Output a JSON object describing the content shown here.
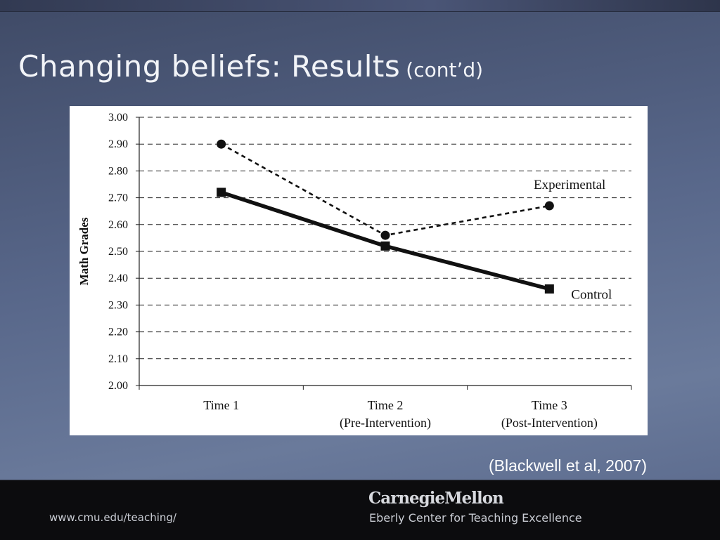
{
  "slide": {
    "title": "Changing beliefs: Results",
    "title_suffix": "(cont’d)",
    "citation": "(Blackwell et al, 2007)"
  },
  "footer": {
    "url": "www.cmu.edu/teaching/",
    "brand": "CarnegieMellon",
    "center_name": "Eberly Center for Teaching Excellence"
  },
  "chart_data": {
    "type": "line",
    "categories": [
      [
        "Time 1"
      ],
      [
        "Time 2",
        "(Pre-Intervention)"
      ],
      [
        "Time 3",
        "(Post-Intervention)"
      ]
    ],
    "series": [
      {
        "name": "Experimental",
        "values": [
          2.9,
          2.56,
          2.67
        ],
        "style": "dashed",
        "marker": "circle"
      },
      {
        "name": "Control",
        "values": [
          2.72,
          2.52,
          2.36
        ],
        "style": "solid",
        "marker": "square"
      }
    ],
    "ylabel": "Math Grades",
    "xlabel": "",
    "ylim": [
      2.0,
      3.0
    ],
    "yticks": [
      "3.00",
      "2.90",
      "2.80",
      "2.70",
      "2.60",
      "2.50",
      "2.40",
      "2.30",
      "2.20",
      "2.10",
      "2.00"
    ],
    "grid": true,
    "legend": "inline labels"
  }
}
